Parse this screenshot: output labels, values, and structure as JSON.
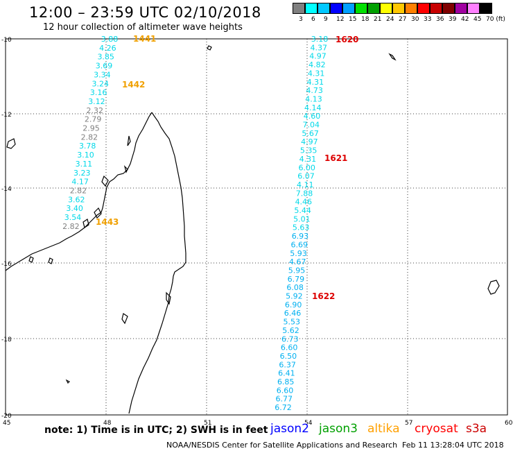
{
  "header": {
    "title": "12:00 – 23:59 UTC 02/10/2018",
    "subtitle": "12 hour collection of altimeter wave heights"
  },
  "color_scale": {
    "labels": [
      "3",
      "6",
      "9",
      "12",
      "15",
      "18",
      "21",
      "24",
      "27",
      "30",
      "33",
      "36",
      "39",
      "42",
      "45",
      "70 (ft)"
    ],
    "colors": [
      "#808080",
      "#00ffff",
      "#00c8ff",
      "#0000ff",
      "#00a0ff",
      "#00e000",
      "#00a000",
      "#ffff00",
      "#ffc800",
      "#ff8000",
      "#ff0000",
      "#c80000",
      "#800000",
      "#a000a0",
      "#ff80ff",
      "#000000"
    ]
  },
  "map": {
    "lon_ticks": [
      "45",
      "48",
      "51",
      "54",
      "57",
      "60"
    ],
    "lat_ticks": [
      "-10",
      "-12",
      "-14",
      "-16",
      "-18",
      "-20"
    ]
  },
  "passes": [
    {
      "time": "1441",
      "color": "#f0a000"
    },
    {
      "time": "1442",
      "color": "#f0a000"
    },
    {
      "time": "1443",
      "color": "#f0a000"
    },
    {
      "time": "1620",
      "color": "#dd0000"
    },
    {
      "time": "1621",
      "color": "#dd0000"
    },
    {
      "time": "1622",
      "color": "#dd0000"
    }
  ],
  "track_left": {
    "values": [
      "3.88",
      "4.26",
      "3.85",
      "3.69",
      "3.34",
      "3.24",
      "3.16",
      "3.12",
      "2.32",
      "2.79",
      "2.95",
      "2.82",
      "3.78",
      "3.10",
      "3.11",
      "3.23",
      "4.17",
      "2.82",
      "3.62",
      "3.40",
      "3.54",
      "2.82"
    ],
    "colors": [
      "#00d8e8",
      "#00d8e8",
      "#00d8e8",
      "#00d8e8",
      "#00d8e8",
      "#00d8e8",
      "#00d8e8",
      "#00d8e8",
      "#808080",
      "#808080",
      "#808080",
      "#808080",
      "#00d8e8",
      "#00d8e8",
      "#00d8e8",
      "#00d8e8",
      "#00d8e8",
      "#808080",
      "#00d8e8",
      "#00d8e8",
      "#00d8e8",
      "#808080"
    ]
  },
  "track_right": {
    "values": [
      "3.18",
      "4.37",
      "4.97",
      "4.82",
      "4.31",
      "4.31",
      "4.73",
      "4.13",
      "4.14",
      "4.60",
      "7.04",
      "5.67",
      "4.97",
      "5.35",
      "4.31",
      "6.00",
      "6.07",
      "4.11",
      "7.88",
      "4.46",
      "5.44",
      "5.01",
      "5.63",
      "6.93",
      "6.69",
      "5.93",
      "4.67",
      "5.95",
      "6.79",
      "6.08",
      "5.92",
      "6.90",
      "6.46",
      "5.53",
      "5.62",
      "6.73",
      "6.60",
      "6.50",
      "6.37",
      "6.41",
      "6.85",
      "6.60",
      "6.77",
      "6.72"
    ],
    "colors": [
      "#00d8e8",
      "#00d8e8",
      "#00d8e8",
      "#00d8e8",
      "#00d8e8",
      "#00d8e8",
      "#00d8e8",
      "#00d8e8",
      "#00d8e8",
      "#00d8e8",
      "#00d8e8",
      "#00d8e8",
      "#00d8e8",
      "#00d8e8",
      "#00d8e8",
      "#00d8e8",
      "#00d8e8",
      "#00d8e8",
      "#00d8e8",
      "#00d8e8",
      "#00d8e8",
      "#00d8e8",
      "#00d8e8",
      "#00b0f0",
      "#00b0f0",
      "#00b0f0",
      "#00b0f0",
      "#00b0f0",
      "#00b0f0",
      "#00b0f0",
      "#00b0f0",
      "#00b0f0",
      "#00b0f0",
      "#00b0f0",
      "#00b0f0",
      "#00b0f0",
      "#00b0f0",
      "#00b0f0",
      "#00b0f0",
      "#00b0f0",
      "#00b0f0",
      "#00b0f0",
      "#00b0f0",
      "#00b0f0"
    ]
  },
  "note": "note:  1) Time is in UTC;  2) SWH is in feet",
  "satellites": [
    {
      "name": "jason2",
      "color": "#0000ff"
    },
    {
      "name": "jason3",
      "color": "#00a000"
    },
    {
      "name": "altika",
      "color": "#ffa000"
    },
    {
      "name": "cryosat",
      "color": "#ff0000"
    },
    {
      "name": "s3a",
      "color": "#cc0000"
    }
  ],
  "footer": {
    "credit": "NOAA/NESDIS Center for Satellite Applications and Research",
    "generated": "Feb 11 13:28:04 UTC 2018"
  }
}
